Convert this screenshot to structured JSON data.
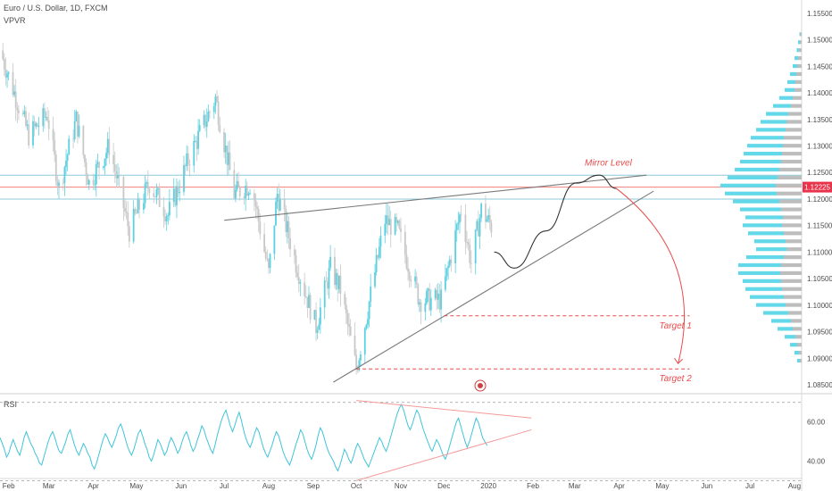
{
  "header": {
    "title": "Euro / U.S. Dollar, 1D, FXCM",
    "indicator": "VPVR"
  },
  "rsi_panel": {
    "label": "RSI"
  },
  "colors": {
    "candle_up": "#5bd0e0",
    "candle_down": "#c8c8c8",
    "volume_profile_up": "#62d8e8",
    "volume_profile_down": "#bdbdbd",
    "trendline": "#7a7a7a",
    "target": "#e84b4b",
    "mirror_line": "#f08080",
    "price_label_bg": "#e8334b",
    "rsi_line": "#3fc4d8",
    "rsi_channel": "#f39a9a",
    "horizontal_zone": "#8cc8d8"
  },
  "chart_data": {
    "type": "line",
    "series_type": "candlestick",
    "title": "Euro / U.S. Dollar, 1D, FXCM",
    "x_labels": [
      "Feb",
      "Mar",
      "Apr",
      "May",
      "Jun",
      "Jul",
      "Aug",
      "Sep",
      "Oct",
      "Nov",
      "Dec",
      "2020",
      "Feb",
      "Mar",
      "Apr",
      "May",
      "Jun",
      "Jul",
      "Aug"
    ],
    "y_ticks": [
      "1.15500",
      "1.15000",
      "1.14500",
      "1.14000",
      "1.13500",
      "1.13000",
      "1.12500",
      "1.12000",
      "1.11500",
      "1.11000",
      "1.10500",
      "1.10000",
      "1.09500",
      "1.09000",
      "1.08500"
    ],
    "ylim": [
      1.0835,
      1.1575
    ],
    "current_price": "1.12225",
    "current_price_value": 1.12225,
    "horizontal_levels": [
      1.1245,
      1.12225,
      1.12
    ],
    "close_path": [
      [
        "2019-01-26",
        1.148
      ],
      [
        "2019-02-05",
        1.14
      ],
      [
        "2019-02-15",
        1.132
      ],
      [
        "2019-02-28",
        1.136
      ],
      [
        "2019-03-08",
        1.122
      ],
      [
        "2019-03-20",
        1.135
      ],
      [
        "2019-03-29",
        1.123
      ],
      [
        "2019-04-12",
        1.13
      ],
      [
        "2019-04-26",
        1.114
      ],
      [
        "2019-05-10",
        1.123
      ],
      [
        "2019-05-23",
        1.117
      ],
      [
        "2019-06-07",
        1.128
      ],
      [
        "2019-06-25",
        1.139
      ],
      [
        "2019-07-08",
        1.121
      ],
      [
        "2019-07-20",
        1.123
      ],
      [
        "2019-08-01",
        1.106
      ],
      [
        "2019-08-07",
        1.121
      ],
      [
        "2019-08-20",
        1.108
      ],
      [
        "2019-09-03",
        1.096
      ],
      [
        "2019-09-13",
        1.107
      ],
      [
        "2019-09-20",
        1.103
      ],
      [
        "2019-10-01",
        1.088
      ],
      [
        "2019-10-11",
        1.102
      ],
      [
        "2019-10-21",
        1.116
      ],
      [
        "2019-10-30",
        1.114
      ],
      [
        "2019-11-14",
        1.101
      ],
      [
        "2019-11-29",
        1.101
      ],
      [
        "2019-12-13",
        1.118
      ],
      [
        "2019-12-20",
        1.108
      ],
      [
        "2019-12-27",
        1.118
      ],
      [
        "2020-01-05",
        1.114
      ]
    ],
    "projection_path": [
      [
        "2020-01-05",
        1.11
      ],
      [
        "2020-01-19",
        1.107
      ],
      [
        "2020-02-10",
        1.114
      ],
      [
        "2020-03-02",
        1.123
      ],
      [
        "2020-03-18",
        1.1245
      ],
      [
        "2020-03-30",
        1.122
      ]
    ],
    "trendlines": [
      {
        "name": "upper",
        "from": [
          "2019-07-01",
          1.116
        ],
        "to": [
          "2020-04-20",
          1.1245
        ]
      },
      {
        "name": "lower",
        "from": [
          "2019-09-15",
          1.0855
        ],
        "to": [
          "2020-04-25",
          1.1215
        ]
      }
    ],
    "targets": [
      {
        "label": "Target 1",
        "value": 1.098,
        "from": "2019-12-01",
        "to": "2020-05-20"
      },
      {
        "label": "Target 2",
        "value": 1.088,
        "from": "2019-10-01",
        "to": "2020-05-20"
      }
    ],
    "annotation": {
      "label": "Mirror Level",
      "value": 1.126
    },
    "volume_profile": {
      "levels": [
        1.151,
        1.1495,
        1.148,
        1.1465,
        1.145,
        1.1435,
        1.142,
        1.1405,
        1.139,
        1.1375,
        1.136,
        1.1345,
        1.133,
        1.1315,
        1.13,
        1.1285,
        1.127,
        1.1255,
        1.124,
        1.1225,
        1.121,
        1.1195,
        1.118,
        1.1165,
        1.115,
        1.1135,
        1.112,
        1.1105,
        1.109,
        1.1075,
        1.106,
        1.1045,
        1.103,
        1.1015,
        1.1,
        1.0985,
        1.097,
        1.0955,
        1.094,
        1.0925,
        1.091,
        1.0895
      ],
      "up": [
        2,
        4,
        5,
        8,
        10,
        14,
        18,
        22,
        30,
        40,
        50,
        58,
        66,
        74,
        80,
        86,
        92,
        100,
        112,
        124,
        116,
        104,
        92,
        84,
        88,
        80,
        70,
        68,
        84,
        96,
        94,
        86,
        82,
        76,
        66,
        56,
        44,
        34,
        24,
        16,
        10,
        6
      ],
      "down": [
        3,
        4,
        6,
        8,
        10,
        12,
        14,
        16,
        20,
        24,
        30,
        34,
        36,
        40,
        42,
        44,
        46,
        50,
        54,
        58,
        56,
        50,
        46,
        42,
        44,
        40,
        36,
        34,
        40,
        46,
        48,
        46,
        44,
        40,
        36,
        30,
        24,
        20,
        14,
        10,
        6,
        4
      ]
    }
  },
  "rsi_data": {
    "ylim": [
      32,
      74
    ],
    "y_ticks": [
      "60.00",
      "40.00"
    ],
    "bands": [
      70,
      30
    ],
    "channel": {
      "upper": {
        "from": [
          "2019-10-01",
          71
        ],
        "to": [
          "2020-01-31",
          62
        ]
      },
      "lower": {
        "from": [
          "2019-10-01",
          30
        ],
        "to": [
          "2020-01-31",
          56
        ]
      }
    },
    "values": [
      52,
      49,
      46,
      42,
      44,
      48,
      51,
      48,
      45,
      43,
      47,
      52,
      55,
      52,
      49,
      47,
      44,
      42,
      39,
      38,
      42,
      46,
      50,
      53,
      55,
      52,
      48,
      45,
      44,
      47,
      50,
      54,
      56,
      52,
      48,
      45,
      43,
      46,
      49,
      47,
      44,
      42,
      38,
      36,
      39,
      43,
      47,
      51,
      54,
      52,
      49,
      47,
      50,
      53,
      57,
      59,
      56,
      52,
      48,
      45,
      43,
      46,
      50,
      54,
      56,
      53,
      49,
      46,
      42,
      40,
      43,
      47,
      51,
      49,
      46,
      43,
      45,
      49,
      52,
      50,
      47,
      44,
      46,
      50,
      53,
      55,
      52,
      48,
      45,
      47,
      51,
      54,
      58,
      56,
      52,
      49,
      46,
      44,
      48,
      53,
      57,
      61,
      64,
      66,
      62,
      58,
      55,
      58,
      62,
      65,
      61,
      56,
      52,
      49,
      47,
      50,
      54,
      57,
      55,
      51,
      47,
      44,
      42,
      45,
      48,
      52,
      55,
      53,
      49,
      45,
      42,
      40,
      38,
      41,
      45,
      49,
      52,
      56,
      54,
      50,
      46,
      43,
      41,
      44,
      48,
      53,
      57,
      55,
      51,
      47,
      44,
      42,
      40,
      37,
      35,
      38,
      42,
      46,
      44,
      41,
      39,
      42,
      46,
      49,
      47,
      44,
      41,
      39,
      37,
      40,
      43,
      46,
      49,
      52,
      50,
      47,
      45,
      48,
      52,
      56,
      60,
      64,
      67,
      69,
      66,
      62,
      58,
      56,
      59,
      63,
      66,
      64,
      60,
      56,
      53,
      50,
      47,
      45,
      48,
      51,
      49,
      46,
      43,
      41,
      44,
      48,
      52,
      56,
      60,
      62,
      58,
      54,
      50,
      47,
      50,
      54,
      58,
      62,
      60,
      56,
      52,
      50,
      48
    ]
  }
}
